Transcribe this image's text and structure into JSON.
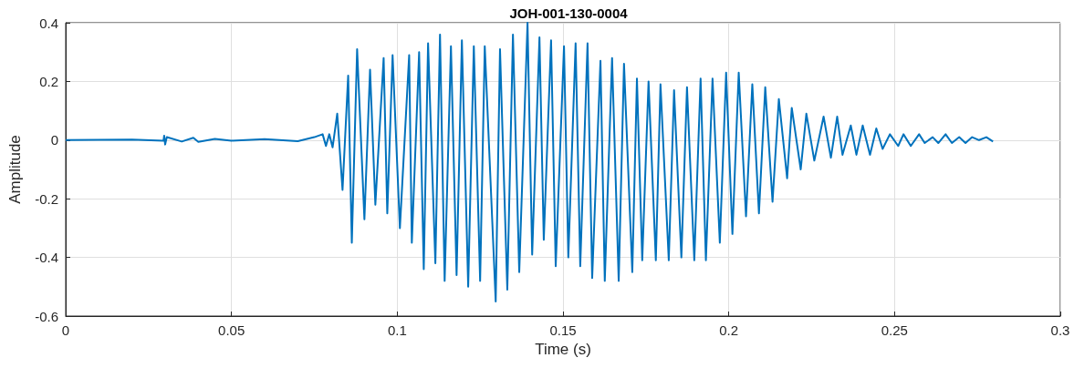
{
  "chart_data": {
    "type": "line",
    "title": "JOH-001-130-0004",
    "xlabel": "Time (s)",
    "ylabel": "Amplitude",
    "xlim": [
      0,
      0.3
    ],
    "xticks": [
      0,
      0.05,
      0.1,
      0.15,
      0.2,
      0.25,
      0.3
    ],
    "ylim": [
      -0.6,
      0.4
    ],
    "yticks": [
      -0.6,
      -0.4,
      -0.2,
      0,
      0.2,
      0.4
    ],
    "grid": true,
    "marker": "none",
    "line_style": "solid",
    "series": [
      {
        "color": "#0072bd",
        "x": [
          0,
          0.02,
          0.0295,
          0.0297,
          0.03,
          0.0305,
          0.035,
          0.0385,
          0.04,
          0.045,
          0.05,
          0.06,
          0.07,
          0.075,
          0.0775,
          0.0785,
          0.0795,
          0.0805,
          0.0819,
          0.0835,
          0.0852,
          0.0863,
          0.0879,
          0.0901,
          0.0918,
          0.0934,
          0.0959,
          0.097,
          0.0986,
          0.1008,
          0.1036,
          0.1044,
          0.1066,
          0.108,
          0.1093,
          0.1115,
          0.1129,
          0.1143,
          0.1162,
          0.1179,
          0.1195,
          0.1214,
          0.1231,
          0.125,
          0.1264,
          0.1297,
          0.131,
          0.1332,
          0.1349,
          0.1368,
          0.1393,
          0.1407,
          0.1429,
          0.1442,
          0.1464,
          0.1478,
          0.1503,
          0.1516,
          0.1538,
          0.1552,
          0.1574,
          0.1588,
          0.1613,
          0.1626,
          0.1648,
          0.1668,
          0.1684,
          0.1709,
          0.1723,
          0.1739,
          0.1758,
          0.178,
          0.1794,
          0.1819,
          0.1835,
          0.1857,
          0.1874,
          0.1896,
          0.1915,
          0.1931,
          0.1951,
          0.1973,
          0.1992,
          0.2011,
          0.203,
          0.2052,
          0.2071,
          0.2091,
          0.211,
          0.2132,
          0.2151,
          0.2176,
          0.219,
          0.2217,
          0.2234,
          0.2258,
          0.2286,
          0.2308,
          0.2327,
          0.2343,
          0.2368,
          0.2385,
          0.2404,
          0.2426,
          0.2445,
          0.2464,
          0.2486,
          0.2511,
          0.2527,
          0.2549,
          0.2574,
          0.2591,
          0.2615,
          0.2632,
          0.2654,
          0.2673,
          0.2695,
          0.2714,
          0.2734,
          0.2755,
          0.2777,
          0.2797
        ],
        "values": [
          0,
          0.002,
          -0.002,
          0.015,
          -0.015,
          0.01,
          -0.005,
          0.008,
          -0.006,
          0.004,
          -0.002,
          0.003,
          -0.004,
          0.01,
          0.02,
          -0.02,
          0.02,
          -0.025,
          0.09,
          -0.17,
          0.22,
          -0.35,
          0.31,
          -0.27,
          0.24,
          -0.22,
          0.28,
          -0.25,
          0.29,
          -0.3,
          0.29,
          -0.35,
          0.3,
          -0.44,
          0.33,
          -0.42,
          0.36,
          -0.48,
          0.32,
          -0.46,
          0.34,
          -0.5,
          0.32,
          -0.48,
          0.32,
          -0.55,
          0.31,
          -0.51,
          0.36,
          -0.45,
          0.4,
          -0.39,
          0.35,
          -0.34,
          0.34,
          -0.43,
          0.32,
          -0.4,
          0.33,
          -0.43,
          0.33,
          -0.47,
          0.27,
          -0.48,
          0.28,
          -0.48,
          0.26,
          -0.45,
          0.21,
          -0.41,
          0.2,
          -0.41,
          0.19,
          -0.41,
          0.17,
          -0.4,
          0.18,
          -0.41,
          0.21,
          -0.41,
          0.21,
          -0.35,
          0.23,
          -0.32,
          0.23,
          -0.26,
          0.19,
          -0.25,
          0.18,
          -0.21,
          0.14,
          -0.13,
          0.11,
          -0.1,
          0.09,
          -0.07,
          0.08,
          -0.06,
          0.08,
          -0.05,
          0.05,
          -0.05,
          0.05,
          -0.05,
          0.04,
          -0.03,
          0.02,
          -0.02,
          0.02,
          -0.02,
          0.02,
          -0.01,
          0.01,
          -0.01,
          0.02,
          -0.01,
          0.01,
          -0.01,
          0.01,
          0,
          0.01,
          -0.005
        ]
      }
    ]
  }
}
